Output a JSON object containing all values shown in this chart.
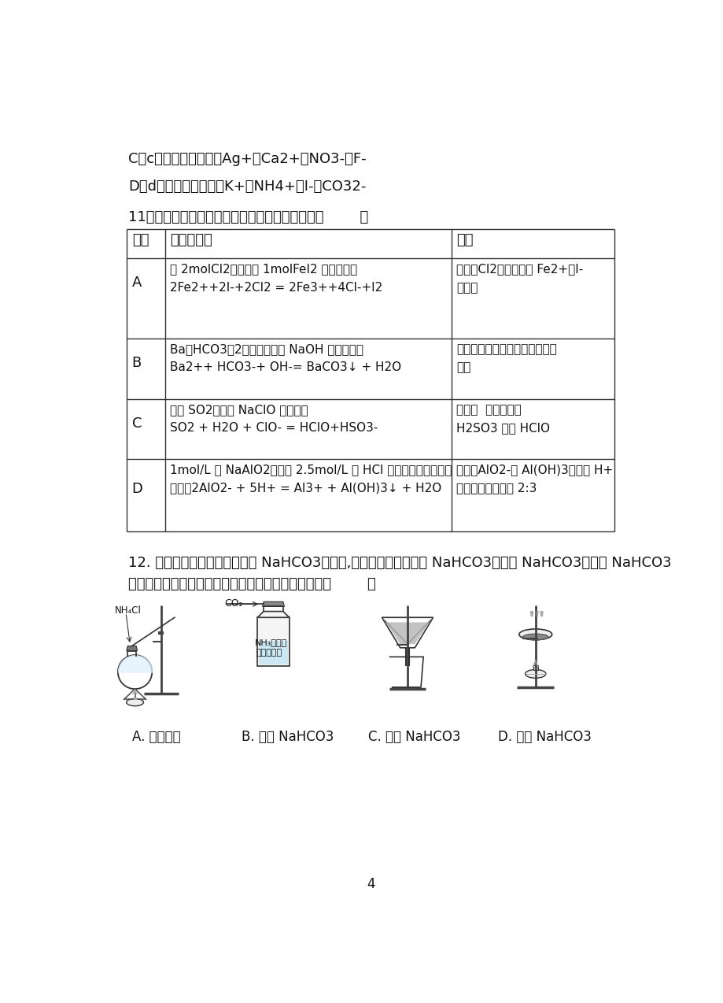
{
  "bg_color": "#ffffff",
  "line_C": "C．c点对应的溶液中：Ag+、Ca2+、NO3-、F-",
  "line_D": "D．d点对应的溶液中：K+、NH4+、I-、CO32-",
  "q11_title": "11．下列离子方程式的书写及评价，均合理的是（        ）",
  "row_A_eq1": "将 2molCl2通入到含 1molFeI2 的溶液中：",
  "row_A_eq2": "2Fe2++2I-+2Cl2 = 2Fe3++4Cl-+I2",
  "row_A_eval1": "正确；Cl2过量，可将 Fe2+、I-",
  "row_A_eval2": "均氧化",
  "row_B_eq1": "Ba（HCO3）2溶液与足量的 NaOH 溶液反应：",
  "row_B_eq2": "Ba2++ HCO3-+ OH-= BaCO3↓ + H2O",
  "row_B_eval1": "正确；酸式盐与碱反应生成正盐",
  "row_B_eval2": "和水",
  "row_C_eq1": "过量 SO2通入到 NaClO 溶液中：",
  "row_C_eq2": "SO2 + H2O + ClO- = HClO+HSO3-",
  "row_C_eval1": "正确；  说明酸性：",
  "row_C_eval2": "H2SO3 强于 HClO",
  "row_D_eq1": "1mol/L 的 NaAlO2溶液和 2.5mol/L 的 HCl 溶液等体积互相均匀",
  "row_D_eq2": "混合：2AlO2- + 5H+ = Al3+ + Al(OH)3↓ + H2O",
  "row_D_eval1": "正确：AlO2-与 Al(OH)3消耗的 H+",
  "row_D_eval2": "的物质的量之比为 2:3",
  "q12_line1": "12. 根据侯氏制碱原理制备少量 NaHCO3的实验,经过制取氨气、制取 NaHCO3、分离 NaHCO3、干燥 NaHCO3",
  "q12_line2": "四个步骤，下列图示装置和原理能达到实验目的的是（        ）",
  "label_A": "A. 制取氨气",
  "label_B": "B. 制取 NaHCO3",
  "label_C": "C. 分离 NaHCO3",
  "label_D": "D. 干燥 NaHCO3",
  "page_number": "4"
}
